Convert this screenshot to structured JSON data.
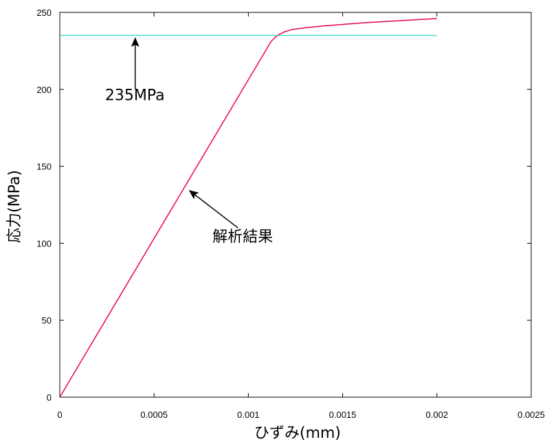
{
  "chart_data": {
    "type": "line",
    "title": "",
    "xlabel": "ひずみ(mm)",
    "ylabel": "応力(MPa)",
    "xlim": [
      0,
      0.0025
    ],
    "ylim": [
      0,
      250
    ],
    "x_ticks": [
      0,
      0.0005,
      0.001,
      0.0015,
      0.002,
      0.0025
    ],
    "x_tick_labels": [
      "0",
      "0.0005",
      "0.001",
      "0.0015",
      "0.002",
      "0.0025"
    ],
    "y_ticks": [
      0,
      50,
      100,
      150,
      200,
      250
    ],
    "y_tick_labels": [
      "0",
      "50",
      "100",
      "150",
      "200",
      "250"
    ],
    "grid": false,
    "series": [
      {
        "color": "#e8005a",
        "points": [
          [
            0,
            0
          ],
          [
            0.00112,
            231
          ],
          [
            0.00114,
            233.5
          ],
          [
            0.00116,
            235.5
          ],
          [
            0.00119,
            237.3
          ],
          [
            0.00123,
            238.8
          ],
          [
            0.0013,
            240.0
          ],
          [
            0.0014,
            241.2
          ],
          [
            0.0015,
            242.2
          ],
          [
            0.0016,
            243.1
          ],
          [
            0.0017,
            243.9
          ],
          [
            0.0018,
            244.6
          ],
          [
            0.0019,
            245.3
          ],
          [
            0.002,
            246.0
          ]
        ]
      },
      {
        "color": "#40e0c0",
        "points": [
          [
            0,
            235
          ],
          [
            0.002,
            235
          ]
        ]
      }
    ],
    "annotations": [
      {
        "text": "235MPa",
        "arrow_tail": [
          0.0004,
          200
        ],
        "arrow_head": [
          0.0004,
          233
        ],
        "text_anchor": [
          0.00024,
          193
        ]
      },
      {
        "text": "解析結果",
        "arrow_tail": [
          0.000945,
          110
        ],
        "arrow_head": [
          0.00069,
          134
        ],
        "text_anchor": [
          0.00081,
          101
        ]
      }
    ]
  }
}
